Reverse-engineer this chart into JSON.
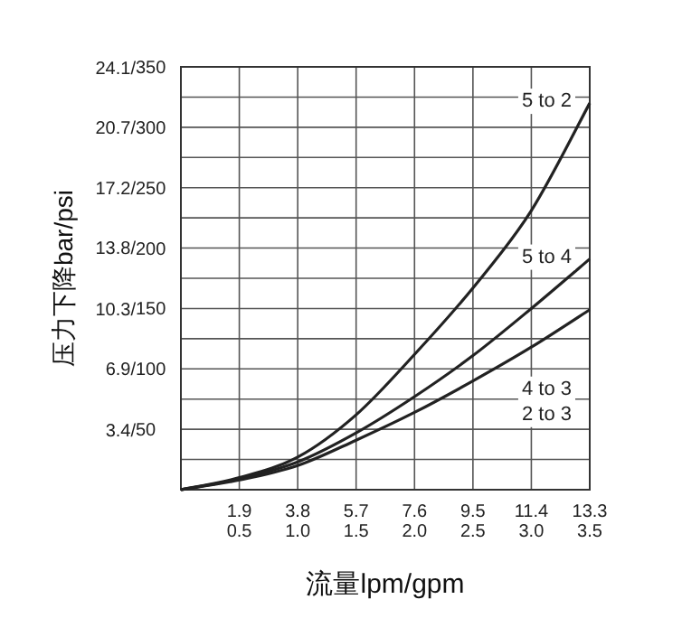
{
  "chart_data": {
    "type": "line",
    "xlabel": "流量lpm/gpm",
    "y2label": "压力下降bar/psi",
    "x": [
      0,
      1.9,
      3.8,
      5.7,
      7.6,
      9.5,
      11.4,
      13.3
    ],
    "xlim": [
      0,
      13.3
    ],
    "xticks": [
      1.9,
      3.8,
      5.7,
      7.6,
      9.5,
      11.4,
      13.3
    ],
    "x2lim": [
      0,
      3.5
    ],
    "x2ticks": [
      {
        "value": 0.5,
        "label": "0.5"
      },
      {
        "value": 1.0,
        "label": "1.0"
      },
      {
        "value": 1.5,
        "label": "1.5"
      },
      {
        "value": 2.0,
        "label": "2.0"
      },
      {
        "value": 2.5,
        "label": "2.5"
      },
      {
        "value": 3.0,
        "label": "3.0"
      },
      {
        "value": 3.5,
        "label": "3.5"
      }
    ],
    "ylim": [
      0,
      350
    ],
    "yticks": [
      {
        "value": 25,
        "label": null
      },
      50,
      {
        "value": 75,
        "label": null
      },
      100,
      {
        "value": 125,
        "label": null
      },
      150,
      {
        "value": 175,
        "label": null
      },
      200,
      {
        "value": 225,
        "label": null
      },
      250,
      {
        "value": 275,
        "label": null
      },
      300,
      {
        "value": 325,
        "label": null
      },
      350
    ],
    "y2lim": [
      0,
      24.13
    ],
    "y2ticks": [
      {
        "value": 3.4,
        "label": "3.4/"
      },
      {
        "value": 6.9,
        "label": "6.9/"
      },
      {
        "value": 10.3,
        "label": "10.3/"
      },
      {
        "value": 13.8,
        "label": "13.8/"
      },
      {
        "value": 17.2,
        "label": "17.2/"
      },
      {
        "value": 20.7,
        "label": "20.7/"
      },
      {
        "value": 24.1,
        "label": "24.1/"
      }
    ],
    "grid": true,
    "series": [
      {
        "name": "5 to 2",
        "color": "#222222",
        "values": [
          0,
          10,
          27,
          62,
          112,
          167,
          231,
          320
        ]
      },
      {
        "name": "5 to 4",
        "color": "#222222",
        "values": [
          0,
          9,
          23,
          47,
          77,
          111,
          150,
          191
        ]
      },
      {
        "name": "4 to 3\n2 to 3",
        "color": "#222222",
        "values": [
          0,
          8,
          20,
          41,
          64,
          90,
          118,
          149
        ]
      }
    ]
  }
}
